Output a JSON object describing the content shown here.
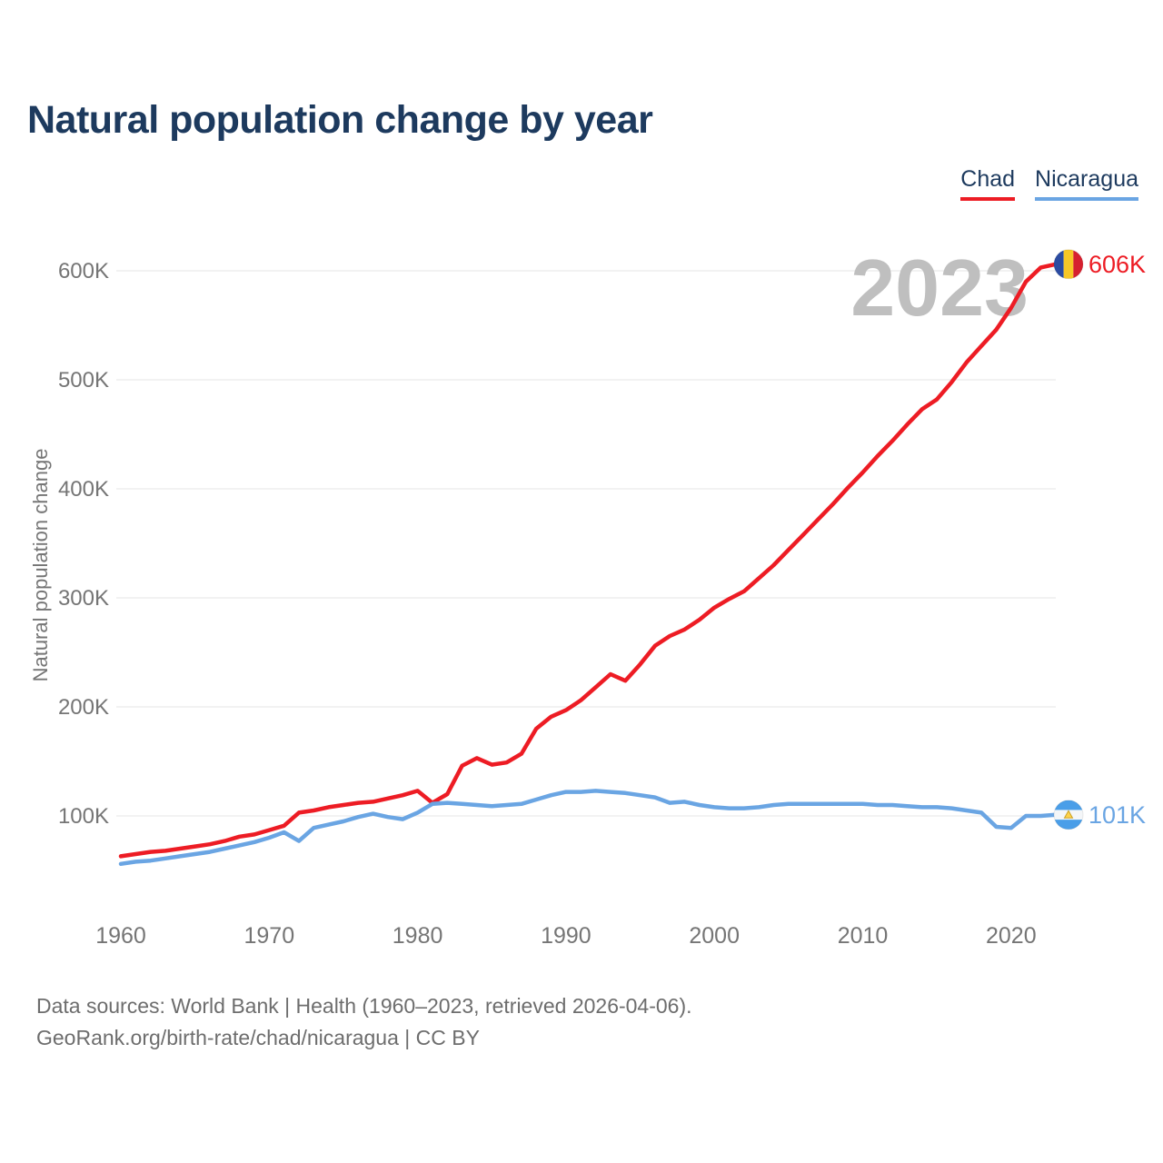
{
  "title": "Natural population change by year",
  "legend": {
    "items": [
      {
        "label": "Chad",
        "color": "#ed1c24"
      },
      {
        "label": "Nicaragua",
        "color": "#6aa5e3"
      }
    ]
  },
  "watermark": "2023",
  "footer": {
    "line1": "Data sources: World Bank | Health (1960–2023, retrieved 2026-04-06).",
    "line2": "GeoRank.org/birth-rate/chad/nicaragua | CC BY"
  },
  "colors": {
    "chad_line": "#ed1c24",
    "nicaragua_line": "#6aa5e3",
    "title_navy": "#1d3a5e",
    "axis_text": "#757575",
    "gridline": "#ededed",
    "watermark_gray": "#bfbfbf",
    "footer_gray": "#6d6d6d"
  },
  "chart_data": {
    "type": "line",
    "title": "Natural population change by year",
    "xlabel": "",
    "ylabel": "Natural population change",
    "values_unit": "thousands",
    "x_ticks": [
      1960,
      1970,
      1980,
      1990,
      2000,
      2010,
      2020
    ],
    "y_ticks": [
      {
        "value": 100,
        "label": "100K"
      },
      {
        "value": 200,
        "label": "200K"
      },
      {
        "value": 300,
        "label": "300K"
      },
      {
        "value": 400,
        "label": "400K"
      },
      {
        "value": 500,
        "label": "500K"
      },
      {
        "value": 600,
        "label": "600K"
      }
    ],
    "xlim": [
      1960,
      2023
    ],
    "ylim_thousands": [
      30,
      650
    ],
    "grid": "horizontal",
    "legend_position": "top-right",
    "watermark_year": "2023",
    "x": [
      1960,
      1961,
      1962,
      1963,
      1964,
      1965,
      1966,
      1967,
      1968,
      1969,
      1970,
      1971,
      1972,
      1973,
      1974,
      1975,
      1976,
      1977,
      1978,
      1979,
      1980,
      1981,
      1982,
      1983,
      1984,
      1985,
      1986,
      1987,
      1988,
      1989,
      1990,
      1991,
      1992,
      1993,
      1994,
      1995,
      1996,
      1997,
      1998,
      1999,
      2000,
      2001,
      2002,
      2003,
      2004,
      2005,
      2006,
      2007,
      2008,
      2009,
      2010,
      2011,
      2012,
      2013,
      2014,
      2015,
      2016,
      2017,
      2018,
      2019,
      2020,
      2021,
      2022,
      2023
    ],
    "series": [
      {
        "name": "Chad",
        "color": "#ed1c24",
        "flag": "chad",
        "end_label": "606K",
        "values": [
          63,
          65,
          67,
          68,
          70,
          72,
          74,
          77,
          81,
          83,
          87,
          91,
          103,
          105,
          108,
          110,
          112,
          113,
          116,
          119,
          123,
          112,
          120,
          146,
          153,
          147,
          149,
          157,
          180,
          191,
          197,
          206,
          218,
          230,
          224,
          239,
          256,
          265,
          271,
          280,
          291,
          299,
          306,
          318,
          330,
          344,
          358,
          372,
          386,
          401,
          415,
          430,
          444,
          459,
          473,
          482,
          498,
          516,
          531,
          546,
          566,
          590,
          603,
          606
        ]
      },
      {
        "name": "Nicaragua",
        "color": "#6aa5e3",
        "flag": "nicaragua",
        "end_label": "101K",
        "values": [
          56,
          58,
          59,
          61,
          63,
          65,
          67,
          70,
          73,
          76,
          80,
          85,
          77,
          89,
          92,
          95,
          99,
          102,
          99,
          97,
          103,
          111,
          112,
          111,
          110,
          109,
          110,
          111,
          115,
          119,
          122,
          122,
          123,
          122,
          121,
          119,
          117,
          112,
          113,
          110,
          108,
          107,
          107,
          108,
          110,
          111,
          111,
          111,
          111,
          111,
          111,
          110,
          110,
          109,
          108,
          108,
          107,
          105,
          103,
          90,
          89,
          100,
          100,
          101
        ]
      }
    ]
  }
}
